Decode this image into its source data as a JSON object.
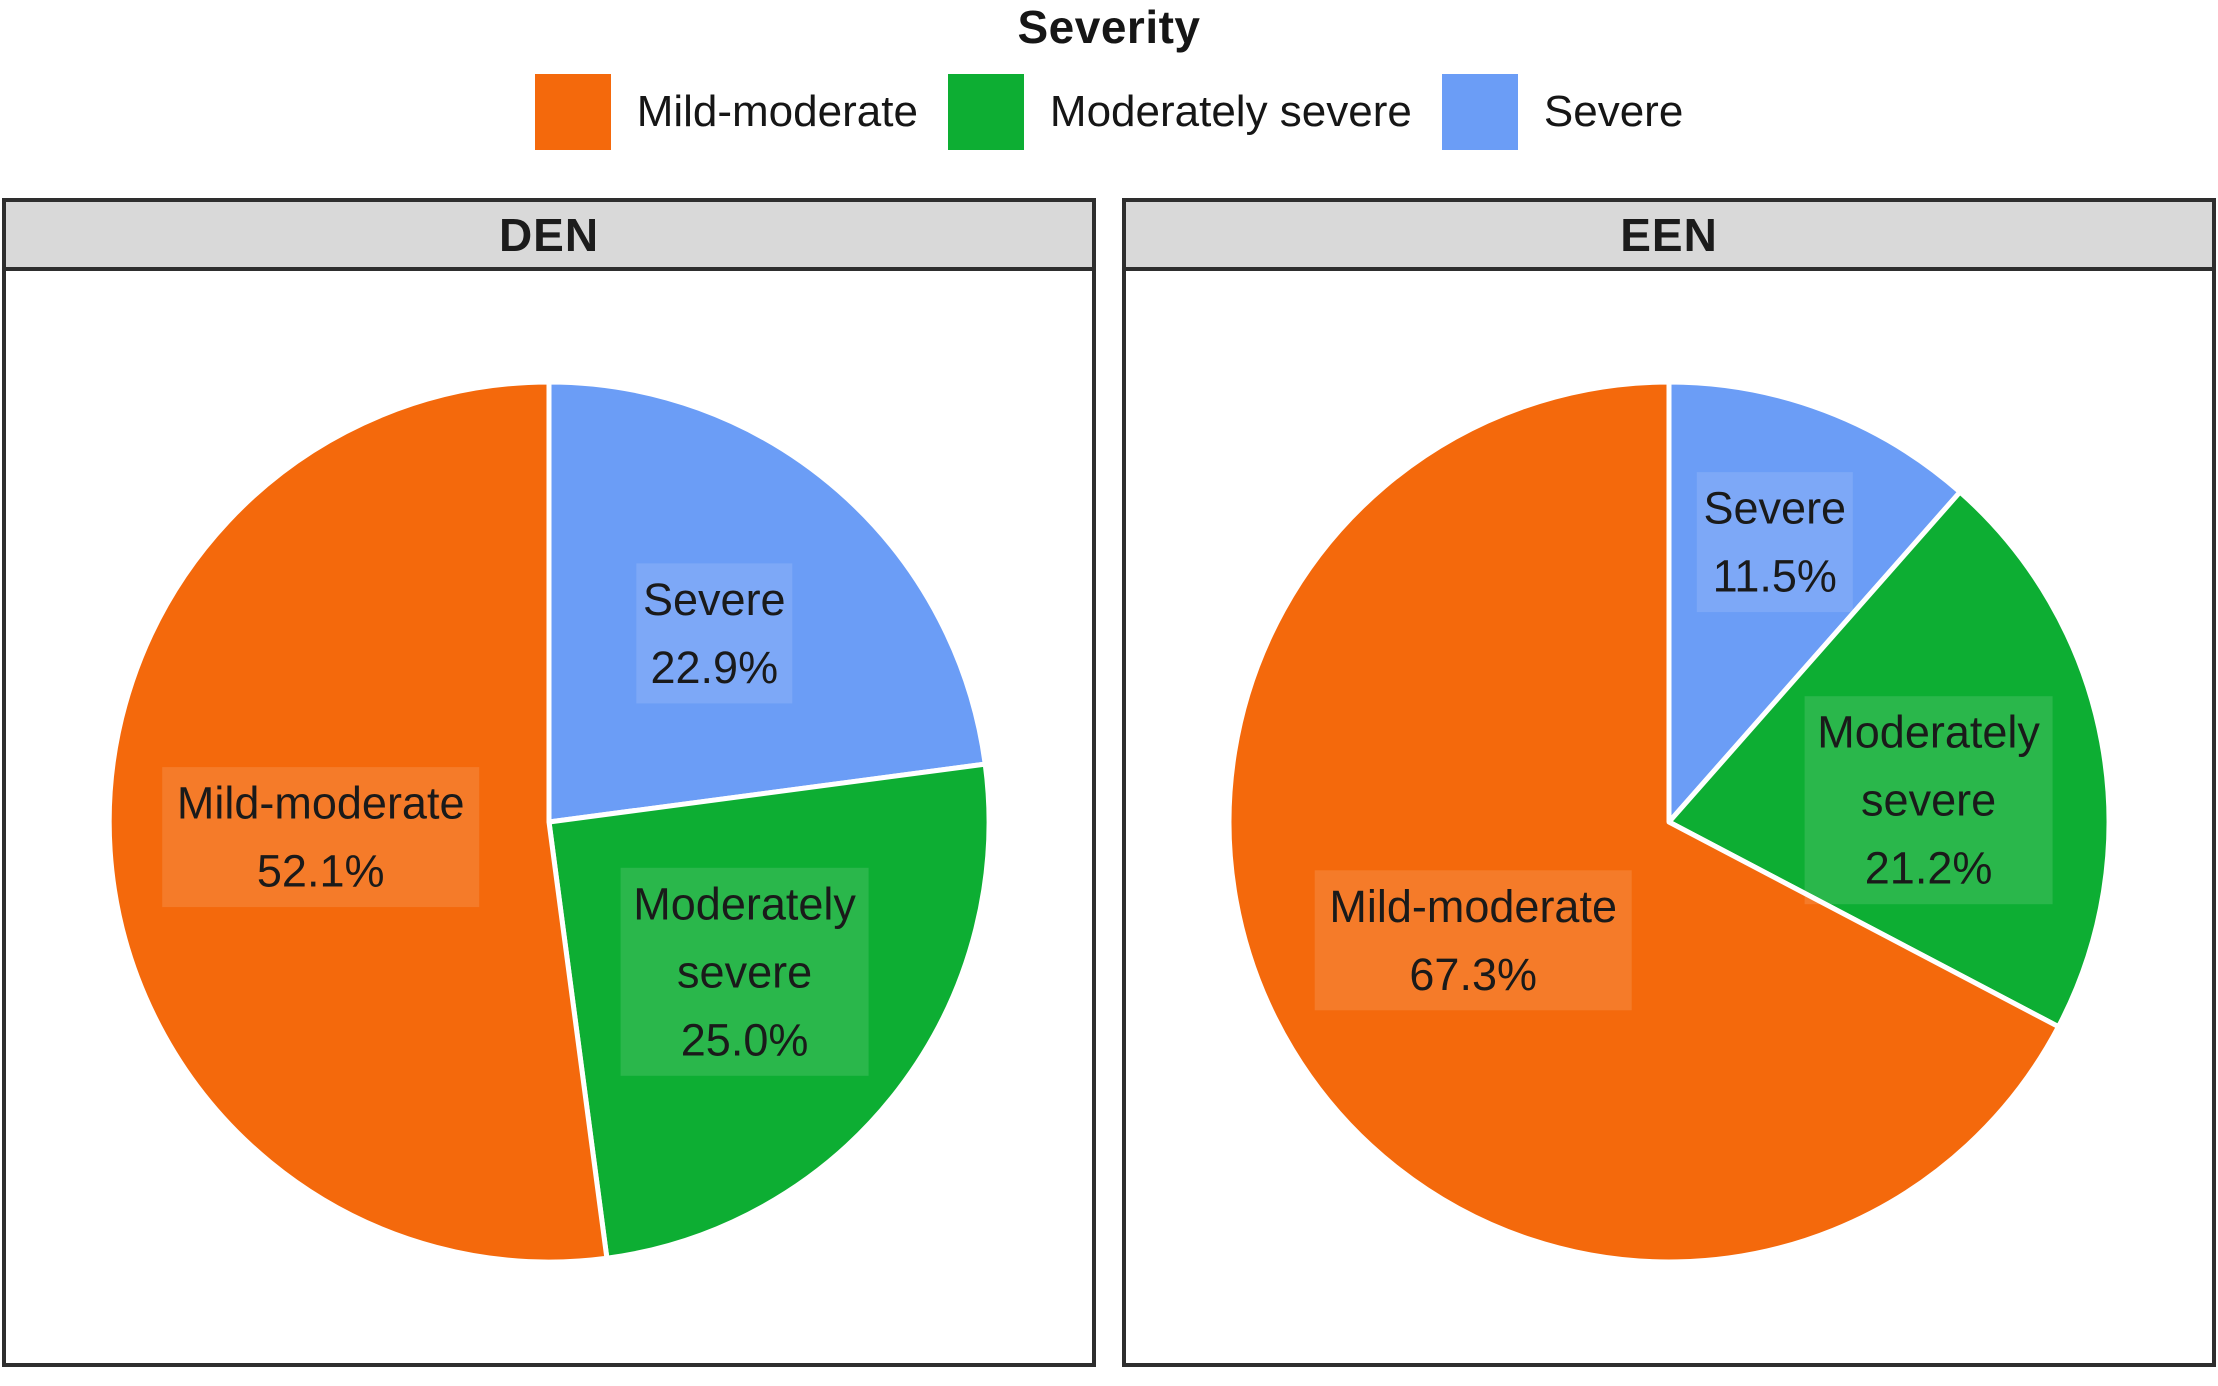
{
  "legend": {
    "title": "Severity",
    "items": [
      {
        "label": "Mild-moderate",
        "color": "#F4690C"
      },
      {
        "label": "Moderately severe",
        "color": "#0DAE33"
      },
      {
        "label": "Severe",
        "color": "#6B9DF6"
      }
    ]
  },
  "colors": {
    "background": "#FFFFFF",
    "header_bg": "#D9D9D9",
    "panel_border": "#2E2E2E",
    "label_text": "#1A1A1A",
    "title_text": "#161616",
    "slice_divider": "#FFFFFF"
  },
  "chart_data": {
    "type": "pie",
    "unit": "%",
    "legend_position": "top",
    "direction": "clockwise",
    "start_angle": "12 o'clock",
    "facet_titles": [
      "DEN",
      "EEN"
    ],
    "facets": [
      {
        "title": "DEN",
        "slices": [
          {
            "name": "Severe",
            "value_pct": 22.9,
            "color": "#6B9DF6",
            "label_lines": [
              "Severe",
              "22.9%"
            ],
            "label_r": 0.57
          },
          {
            "name": "Moderately severe",
            "value_pct": 25.0,
            "color": "#0DAE33",
            "label_lines": [
              "Moderately",
              "severe",
              "25.0%"
            ],
            "label_r": 0.56
          },
          {
            "name": "Mild-moderate",
            "value_pct": 52.1,
            "color": "#F4690C",
            "label_lines": [
              "Mild-moderate",
              "52.1%"
            ],
            "label_r": 0.52
          }
        ]
      },
      {
        "title": "EEN",
        "slices": [
          {
            "name": "Severe",
            "value_pct": 11.5,
            "color": "#6B9DF6",
            "label_lines": [
              "Severe",
              "11.5%"
            ],
            "label_r": 0.68
          },
          {
            "name": "Moderately severe",
            "value_pct": 21.2,
            "color": "#0DAE33",
            "label_lines": [
              "Moderately",
              "severe",
              "21.2%"
            ],
            "label_r": 0.6,
            "label_dy": 26
          },
          {
            "name": "Mild-moderate",
            "value_pct": 67.3,
            "color": "#F4690C",
            "label_lines": [
              "Mild-moderate",
              "67.3%"
            ],
            "label_r": 0.52
          }
        ]
      }
    ]
  }
}
